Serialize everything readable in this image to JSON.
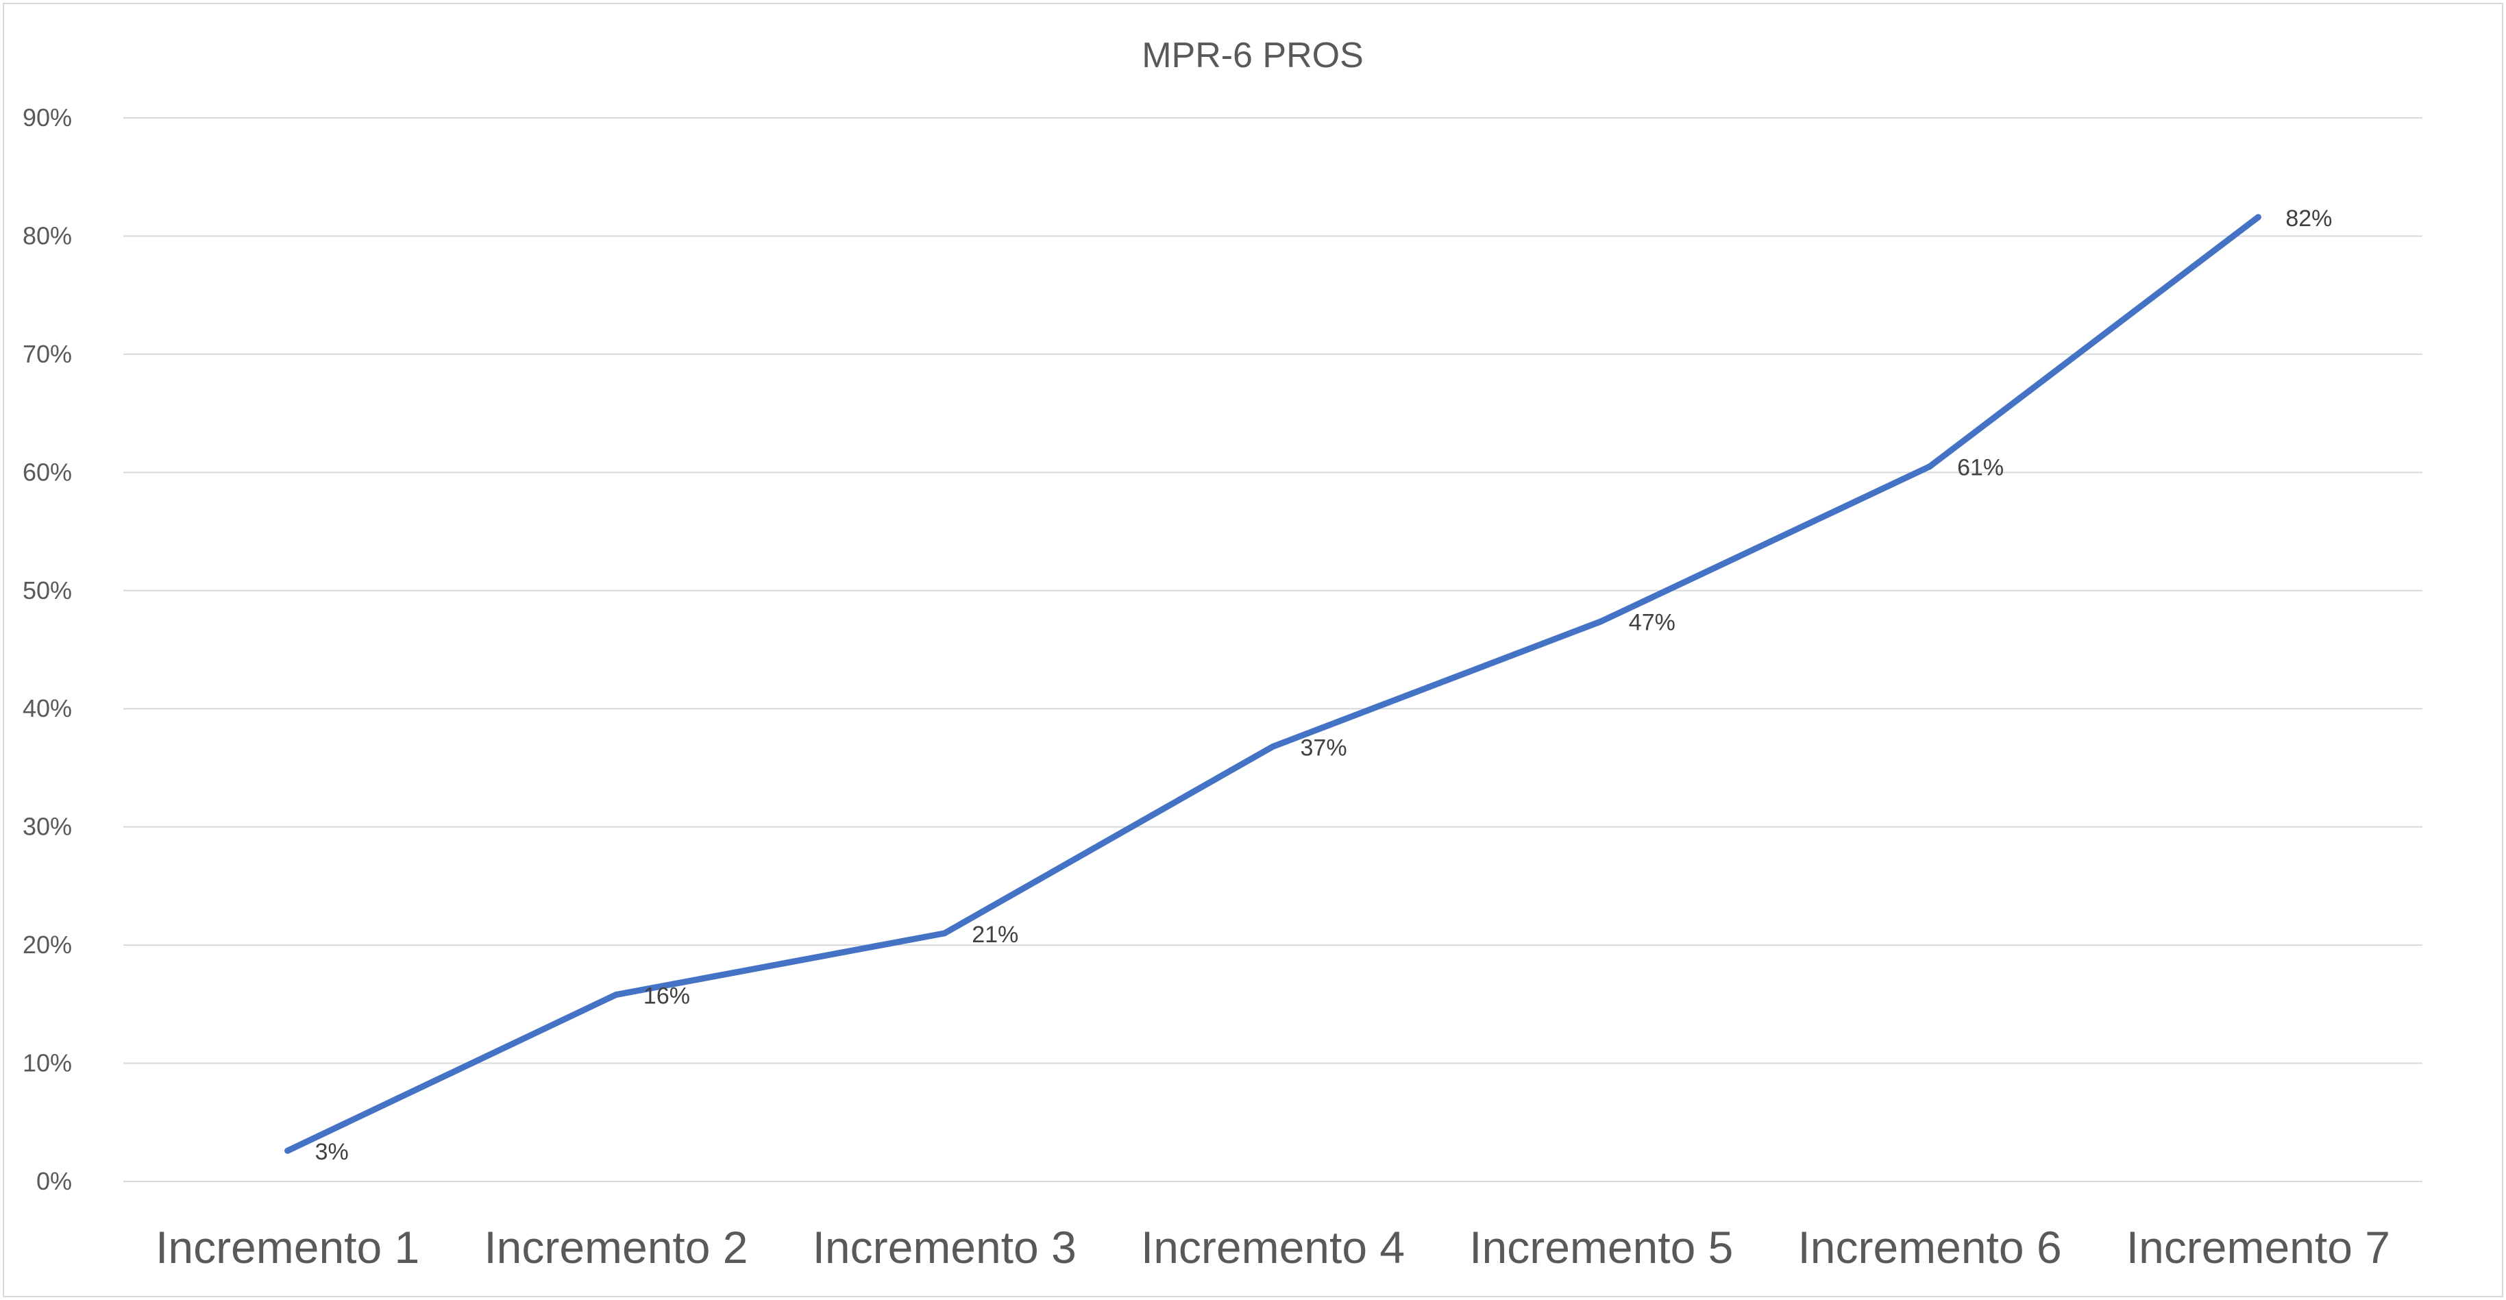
{
  "chart_data": {
    "type": "line",
    "title": "MPR-6 PROS",
    "categories": [
      "Incremento 1",
      "Incremento 2",
      "Incremento 3",
      "Incremento 4",
      "Incremento 5",
      "Incremento 6",
      "Incremento 7"
    ],
    "series": [
      {
        "values": [
          2.6,
          15.8,
          21.0,
          36.8,
          47.4,
          60.5,
          81.6
        ],
        "data_labels": [
          "3%",
          "16%",
          "21%",
          "37%",
          "47%",
          "61%",
          "82%"
        ],
        "color": "#4472c4"
      }
    ],
    "ylim": [
      0,
      90
    ],
    "yticks": [
      0,
      10,
      20,
      30,
      40,
      50,
      60,
      70,
      80,
      90
    ],
    "ytick_labels": [
      "0%",
      "10%",
      "20%",
      "30%",
      "40%",
      "50%",
      "60%",
      "70%",
      "80%",
      "90%"
    ],
    "grid": true,
    "legend": "none",
    "gridline_color": "#d9d9d9",
    "text_color": "#595959"
  }
}
